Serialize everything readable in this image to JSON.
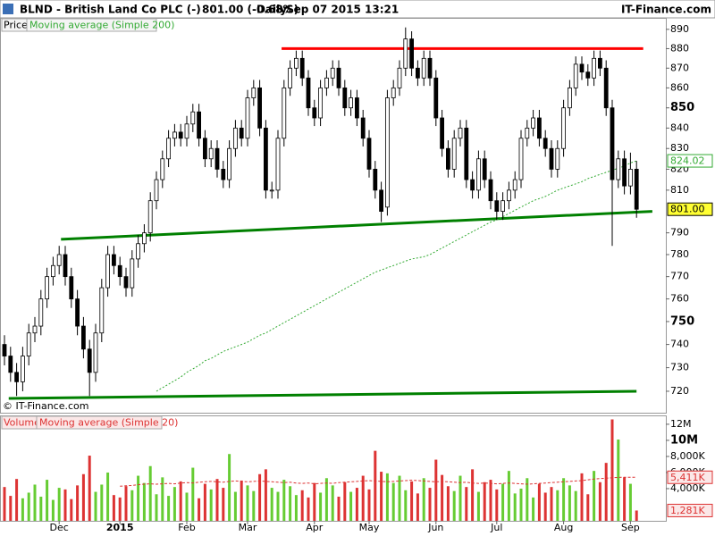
{
  "header": {
    "symbol": "BLND - British Land Co PLC (-)",
    "quote": "801.00 (-0.68%)",
    "interval": "Daily",
    "timestamp": "Sep 07 2015 13:21",
    "brand": "IT-Finance.com"
  },
  "chart_data": [
    {
      "type": "candlestick",
      "name": "Price",
      "watermark": "© IT-Finance.com",
      "log_scale": true,
      "up_color": "#ffffff",
      "down_color": "#000000",
      "open": [
        740,
        735,
        728,
        724,
        735,
        745,
        748,
        760,
        770,
        775,
        780,
        770,
        760,
        748,
        738,
        728,
        745,
        765,
        780,
        775,
        770,
        765,
        778,
        785,
        790,
        805,
        815,
        825,
        835,
        838,
        835,
        842,
        848,
        835,
        825,
        830,
        820,
        815,
        830,
        840,
        835,
        855,
        860,
        840,
        810,
        810,
        835,
        860,
        870,
        875,
        865,
        850,
        845,
        860,
        865,
        870,
        860,
        850,
        855,
        845,
        835,
        820,
        810,
        802,
        855,
        860,
        870,
        885,
        870,
        865,
        875,
        865,
        845,
        830,
        820,
        835,
        840,
        815,
        810,
        825,
        815,
        805,
        800,
        805,
        810,
        815,
        835,
        840,
        845,
        835,
        830,
        820,
        830,
        850,
        860,
        872,
        868,
        865,
        875,
        870,
        850,
        815,
        825,
        812,
        820
      ],
      "high": [
        744,
        739,
        732,
        739,
        749,
        752,
        764,
        774,
        779,
        784,
        784,
        774,
        764,
        752,
        742,
        749,
        769,
        784,
        784,
        779,
        774,
        782,
        789,
        794,
        809,
        819,
        829,
        839,
        842,
        842,
        846,
        852,
        852,
        839,
        834,
        834,
        824,
        834,
        844,
        844,
        859,
        864,
        864,
        844,
        814,
        839,
        864,
        874,
        879,
        879,
        869,
        854,
        864,
        869,
        874,
        874,
        864,
        859,
        859,
        849,
        839,
        824,
        814,
        859,
        864,
        874,
        891,
        889,
        874,
        879,
        879,
        869,
        849,
        834,
        839,
        844,
        844,
        819,
        829,
        829,
        819,
        809,
        809,
        814,
        819,
        839,
        844,
        849,
        849,
        839,
        834,
        834,
        854,
        864,
        876,
        876,
        872,
        879,
        879,
        874,
        854,
        829,
        829,
        828,
        824
      ],
      "low": [
        731,
        724,
        718,
        720,
        731,
        741,
        744,
        756,
        766,
        771,
        766,
        756,
        744,
        734,
        718,
        724,
        741,
        761,
        771,
        766,
        761,
        761,
        774,
        781,
        786,
        801,
        811,
        821,
        831,
        831,
        831,
        838,
        831,
        821,
        821,
        816,
        811,
        811,
        826,
        831,
        831,
        851,
        836,
        806,
        806,
        806,
        831,
        856,
        866,
        861,
        846,
        841,
        841,
        856,
        861,
        856,
        846,
        846,
        841,
        831,
        816,
        806,
        795,
        798,
        851,
        856,
        866,
        866,
        861,
        861,
        861,
        841,
        826,
        816,
        816,
        831,
        811,
        806,
        806,
        811,
        801,
        796,
        796,
        801,
        806,
        811,
        831,
        836,
        831,
        826,
        816,
        816,
        826,
        846,
        856,
        864,
        861,
        861,
        866,
        846,
        784,
        811,
        808,
        808,
        797
      ],
      "close": [
        735,
        728,
        724,
        735,
        745,
        748,
        760,
        770,
        775,
        780,
        770,
        760,
        748,
        738,
        728,
        745,
        765,
        780,
        775,
        770,
        765,
        778,
        785,
        790,
        805,
        815,
        825,
        835,
        838,
        835,
        842,
        848,
        835,
        825,
        830,
        820,
        815,
        830,
        840,
        835,
        855,
        860,
        840,
        810,
        810,
        835,
        860,
        870,
        875,
        865,
        850,
        845,
        860,
        865,
        870,
        860,
        850,
        855,
        845,
        835,
        820,
        810,
        800,
        855,
        860,
        870,
        885,
        870,
        865,
        875,
        865,
        845,
        830,
        820,
        835,
        840,
        815,
        810,
        825,
        815,
        805,
        800,
        805,
        810,
        815,
        835,
        840,
        845,
        835,
        830,
        820,
        830,
        850,
        860,
        872,
        868,
        865,
        875,
        870,
        850,
        815,
        825,
        812,
        820,
        801
      ],
      "last_label": "801.00",
      "series": [
        {
          "name": "Moving average (Simple 200)",
          "color": "#33aa33",
          "last_label": "824.02",
          "values": [
            null,
            null,
            null,
            null,
            null,
            null,
            null,
            null,
            null,
            null,
            null,
            null,
            null,
            null,
            null,
            null,
            null,
            null,
            null,
            null,
            null,
            null,
            null,
            null,
            null,
            720,
            721.5,
            723,
            724.5,
            726,
            728,
            729.5,
            731,
            733,
            734,
            735.5,
            737,
            738,
            739,
            740,
            741,
            742.5,
            744,
            745,
            746.5,
            748,
            749.5,
            751,
            752.5,
            754,
            755.5,
            757,
            758.5,
            760,
            761.5,
            763,
            764.5,
            766,
            767.5,
            769,
            770.5,
            772,
            773,
            774,
            775,
            776,
            777,
            778,
            778.5,
            779,
            780,
            781.5,
            783,
            784.5,
            786,
            787.5,
            789,
            790.5,
            792,
            793.5,
            795,
            796,
            797.5,
            799,
            800.5,
            802,
            803.5,
            805,
            806,
            807,
            808.5,
            810,
            811,
            812,
            813,
            814,
            815.5,
            816.5,
            817.5,
            818.5,
            819.5,
            820.5,
            821.5,
            823,
            824.02
          ]
        }
      ],
      "trendlines": [
        {
          "color": "#ff0000",
          "x": [
            45.6,
            105.1
          ],
          "y": [
            880,
            880
          ]
        },
        {
          "color": "#008000",
          "x": [
            9.3,
            106.6
          ],
          "y": [
            787,
            800
          ]
        },
        {
          "color": "#008000",
          "x": [
            0.7,
            104
          ],
          "y": [
            717,
            720
          ]
        }
      ],
      "ylim": [
        711,
        896
      ],
      "yticks": [
        890,
        880,
        870,
        860,
        850,
        840,
        830,
        820,
        810,
        790,
        780,
        770,
        760,
        750,
        740,
        730,
        720
      ],
      "bold_ticks": [
        850,
        750
      ]
    },
    {
      "type": "bar",
      "name": "Volume",
      "up_color": "#66cc33",
      "down_color": "#dd3333",
      "values": [
        4200,
        3100,
        5200,
        2800,
        3500,
        4500,
        3000,
        5100,
        2600,
        4100,
        3900,
        2700,
        4400,
        5800,
        8100,
        3600,
        4500,
        6000,
        3200,
        2900,
        4300,
        3800,
        5600,
        4700,
        6800,
        3300,
        5400,
        3100,
        4200,
        4900,
        3500,
        6600,
        2800,
        4600,
        3900,
        5200,
        4100,
        8300,
        3600,
        5000,
        4400,
        3700,
        5800,
        6400,
        4100,
        3600,
        5100,
        4300,
        3200,
        3800,
        2900,
        4700,
        3500,
        5300,
        4400,
        3000,
        4800,
        3600,
        4100,
        5600,
        3900,
        8700,
        6100,
        5900,
        4700,
        5600,
        3800,
        4900,
        3400,
        5300,
        4100,
        7600,
        5700,
        4300,
        3700,
        5600,
        4200,
        6400,
        3600,
        4800,
        5100,
        3900,
        4600,
        6200,
        3400,
        4000,
        5300,
        2900,
        4600,
        3500,
        4200,
        3800,
        5300,
        4400,
        3700,
        5900,
        3300,
        6200,
        4800,
        7200,
        12600,
        10100,
        5400,
        4600,
        1281
      ],
      "last_label": "1,281K",
      "series": [
        {
          "name": "Moving average (Simple 20)",
          "color": "#dd3333",
          "last_label": "5,411K",
          "values": [
            null,
            null,
            null,
            null,
            null,
            null,
            null,
            null,
            null,
            null,
            null,
            null,
            null,
            null,
            null,
            null,
            null,
            null,
            null,
            4300,
            4350,
            4400,
            4500,
            4550,
            4600,
            4550,
            4600,
            4650,
            4600,
            4700,
            4750,
            4700,
            4800,
            4850,
            4900,
            4850,
            4800,
            4900,
            4950,
            4900,
            4850,
            4900,
            4950,
            4900,
            4850,
            4800,
            4750,
            4800,
            4700,
            4650,
            4700,
            4600,
            4650,
            4700,
            4650,
            4750,
            4800,
            4850,
            4900,
            4950,
            5000,
            4950,
            4900,
            4850,
            4900,
            4950,
            5000,
            5050,
            5000,
            4950,
            4900,
            4850,
            4900,
            4850,
            4800,
            4750,
            4800,
            4700,
            4650,
            4700,
            4650,
            4600,
            4650,
            4700,
            4650,
            4600,
            4550,
            4600,
            4650,
            4700,
            4750,
            4800,
            4850,
            4900,
            4950,
            5000,
            5100,
            5200,
            5250,
            5300,
            5350,
            5400,
            5420,
            5415,
            5411
          ]
        }
      ],
      "ylim": [
        0,
        13100
      ],
      "yticks": [
        {
          "value": 12000,
          "label": "12M"
        },
        {
          "value": 10000,
          "label": "10M"
        },
        {
          "value": 8000,
          "label": "8,000K"
        },
        {
          "value": 6000,
          "label": "6,000K"
        },
        {
          "value": 4000,
          "label": "4,000K"
        }
      ],
      "bold_ticks": [
        10000
      ],
      "xticks": [
        {
          "value": 9,
          "label": "Dec"
        },
        {
          "value": 19,
          "label": "2015"
        },
        {
          "value": 30,
          "label": "Feb"
        },
        {
          "value": 40,
          "label": "Mar"
        },
        {
          "value": 51,
          "label": "Apr"
        },
        {
          "value": 60,
          "label": "May"
        },
        {
          "value": 71,
          "label": "Jun"
        },
        {
          "value": 81,
          "label": "Jul"
        },
        {
          "value": 92,
          "label": "Aug"
        },
        {
          "value": 103,
          "label": "Sep"
        }
      ],
      "bold_xticks": [
        19
      ]
    }
  ]
}
